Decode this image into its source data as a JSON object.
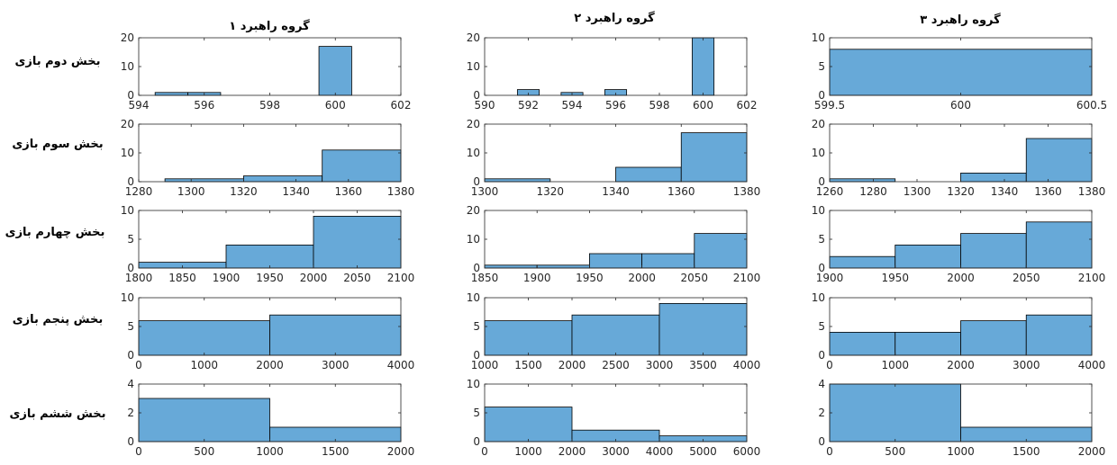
{
  "column_titles": [
    "گروه راهبرد ۱",
    "گروه راهبرد ۲",
    "گروه راهبرد ۳"
  ],
  "row_labels": [
    "بخش دوم بازی",
    "بخش سوم بازی",
    "بخش چهارم بازی",
    "بخش پنجم بازی",
    "بخش ششم بازی"
  ],
  "colors": {
    "bar_fill": "#67a9d8",
    "bar_edge": "#000000",
    "axis": "#262626"
  },
  "chart_data": [
    {
      "type": "bar",
      "row": 0,
      "col": 0,
      "xlim": [
        594,
        602
      ],
      "ylim": [
        0,
        20
      ],
      "xticks": [
        594,
        596,
        598,
        600,
        602
      ],
      "yticks": [
        0,
        10,
        20
      ],
      "bins": [
        [
          594.5,
          595.5,
          1
        ],
        [
          595.5,
          596.5,
          1
        ],
        [
          599.5,
          600.5,
          17
        ]
      ]
    },
    {
      "type": "bar",
      "row": 0,
      "col": 1,
      "xlim": [
        590,
        602
      ],
      "ylim": [
        0,
        20
      ],
      "xticks": [
        590,
        592,
        594,
        596,
        598,
        600,
        602
      ],
      "yticks": [
        0,
        10,
        20
      ],
      "bins": [
        [
          591.5,
          592.5,
          2
        ],
        [
          593.5,
          594.5,
          1
        ],
        [
          595.5,
          596.5,
          2
        ],
        [
          599.5,
          600.5,
          20
        ]
      ]
    },
    {
      "type": "bar",
      "row": 0,
      "col": 2,
      "xlim": [
        599.5,
        600.5
      ],
      "ylim": [
        0,
        10
      ],
      "xticks": [
        599.5,
        600,
        600.5
      ],
      "yticks": [
        0,
        5,
        10
      ],
      "bins": [
        [
          599.5,
          600.5,
          8
        ]
      ]
    },
    {
      "type": "bar",
      "row": 1,
      "col": 0,
      "xlim": [
        1280,
        1380
      ],
      "ylim": [
        0,
        20
      ],
      "xticks": [
        1280,
        1300,
        1320,
        1340,
        1360,
        1380
      ],
      "yticks": [
        0,
        10,
        20
      ],
      "bins": [
        [
          1290,
          1320,
          1
        ],
        [
          1320,
          1350,
          2
        ],
        [
          1350,
          1380,
          11
        ]
      ]
    },
    {
      "type": "bar",
      "row": 1,
      "col": 1,
      "xlim": [
        1300,
        1380
      ],
      "ylim": [
        0,
        20
      ],
      "xticks": [
        1300,
        1320,
        1340,
        1360,
        1380
      ],
      "yticks": [
        0,
        10,
        20
      ],
      "bins": [
        [
          1300,
          1320,
          1
        ],
        [
          1340,
          1360,
          5
        ],
        [
          1360,
          1380,
          17
        ]
      ]
    },
    {
      "type": "bar",
      "row": 1,
      "col": 2,
      "xlim": [
        1260,
        1380
      ],
      "ylim": [
        0,
        20
      ],
      "xticks": [
        1260,
        1280,
        1300,
        1320,
        1340,
        1360,
        1380
      ],
      "yticks": [
        0,
        10,
        20
      ],
      "bins": [
        [
          1260,
          1290,
          1
        ],
        [
          1320,
          1350,
          3
        ],
        [
          1350,
          1380,
          15
        ]
      ]
    },
    {
      "type": "bar",
      "row": 2,
      "col": 0,
      "xlim": [
        1800,
        2100
      ],
      "ylim": [
        0,
        10
      ],
      "xticks": [
        1800,
        1850,
        1900,
        1950,
        2000,
        2050,
        2100
      ],
      "yticks": [
        0,
        5,
        10
      ],
      "bins": [
        [
          1800,
          1900,
          1
        ],
        [
          1900,
          2000,
          4
        ],
        [
          2000,
          2100,
          9
        ]
      ]
    },
    {
      "type": "bar",
      "row": 2,
      "col": 1,
      "xlim": [
        1850,
        2100
      ],
      "ylim": [
        0,
        20
      ],
      "xticks": [
        1850,
        1900,
        1950,
        2000,
        2050,
        2100
      ],
      "yticks": [
        0,
        10,
        20
      ],
      "bins": [
        [
          1850,
          1900,
          1
        ],
        [
          1900,
          1950,
          1
        ],
        [
          1950,
          2000,
          5
        ],
        [
          2000,
          2050,
          5
        ],
        [
          2050,
          2100,
          12
        ]
      ]
    },
    {
      "type": "bar",
      "row": 2,
      "col": 2,
      "xlim": [
        1900,
        2100
      ],
      "ylim": [
        0,
        10
      ],
      "xticks": [
        1900,
        1950,
        2000,
        2050,
        2100
      ],
      "yticks": [
        0,
        5,
        10
      ],
      "bins": [
        [
          1900,
          1950,
          2
        ],
        [
          1950,
          2000,
          4
        ],
        [
          2000,
          2050,
          6
        ],
        [
          2050,
          2100,
          8
        ]
      ]
    },
    {
      "type": "bar",
      "row": 3,
      "col": 0,
      "xlim": [
        0,
        4000
      ],
      "ylim": [
        0,
        10
      ],
      "xticks": [
        0,
        1000,
        2000,
        3000,
        4000
      ],
      "yticks": [
        0,
        5,
        10
      ],
      "bins": [
        [
          0,
          2000,
          6
        ],
        [
          2000,
          4000,
          7
        ]
      ]
    },
    {
      "type": "bar",
      "row": 3,
      "col": 1,
      "xlim": [
        1000,
        4000
      ],
      "ylim": [
        0,
        10
      ],
      "xticks": [
        1000,
        1500,
        2000,
        2500,
        3000,
        3500,
        4000
      ],
      "yticks": [
        0,
        5,
        10
      ],
      "bins": [
        [
          1000,
          2000,
          6
        ],
        [
          2000,
          3000,
          7
        ],
        [
          3000,
          4000,
          9
        ]
      ]
    },
    {
      "type": "bar",
      "row": 3,
      "col": 2,
      "xlim": [
        0,
        4000
      ],
      "ylim": [
        0,
        10
      ],
      "xticks": [
        0,
        1000,
        2000,
        3000,
        4000
      ],
      "yticks": [
        0,
        5,
        10
      ],
      "bins": [
        [
          0,
          1000,
          4
        ],
        [
          1000,
          2000,
          4
        ],
        [
          2000,
          3000,
          6
        ],
        [
          3000,
          4000,
          7
        ]
      ]
    },
    {
      "type": "bar",
      "row": 4,
      "col": 0,
      "xlim": [
        0,
        2000
      ],
      "ylim": [
        0,
        4
      ],
      "xticks": [
        0,
        500,
        1000,
        1500,
        2000
      ],
      "yticks": [
        0,
        2,
        4
      ],
      "bins": [
        [
          0,
          1000,
          3
        ],
        [
          1000,
          2000,
          1
        ]
      ]
    },
    {
      "type": "bar",
      "row": 4,
      "col": 1,
      "xlim": [
        0,
        6000
      ],
      "ylim": [
        0,
        10
      ],
      "xticks": [
        0,
        1000,
        2000,
        3000,
        4000,
        5000,
        6000
      ],
      "yticks": [
        0,
        5,
        10
      ],
      "bins": [
        [
          0,
          2000,
          6
        ],
        [
          2000,
          4000,
          2
        ],
        [
          4000,
          6000,
          1
        ]
      ]
    },
    {
      "type": "bar",
      "row": 4,
      "col": 2,
      "xlim": [
        0,
        2000
      ],
      "ylim": [
        0,
        4
      ],
      "xticks": [
        0,
        500,
        1000,
        1500,
        2000
      ],
      "yticks": [
        0,
        2,
        4
      ],
      "bins": [
        [
          0,
          1000,
          4
        ],
        [
          1000,
          2000,
          1
        ]
      ]
    }
  ]
}
